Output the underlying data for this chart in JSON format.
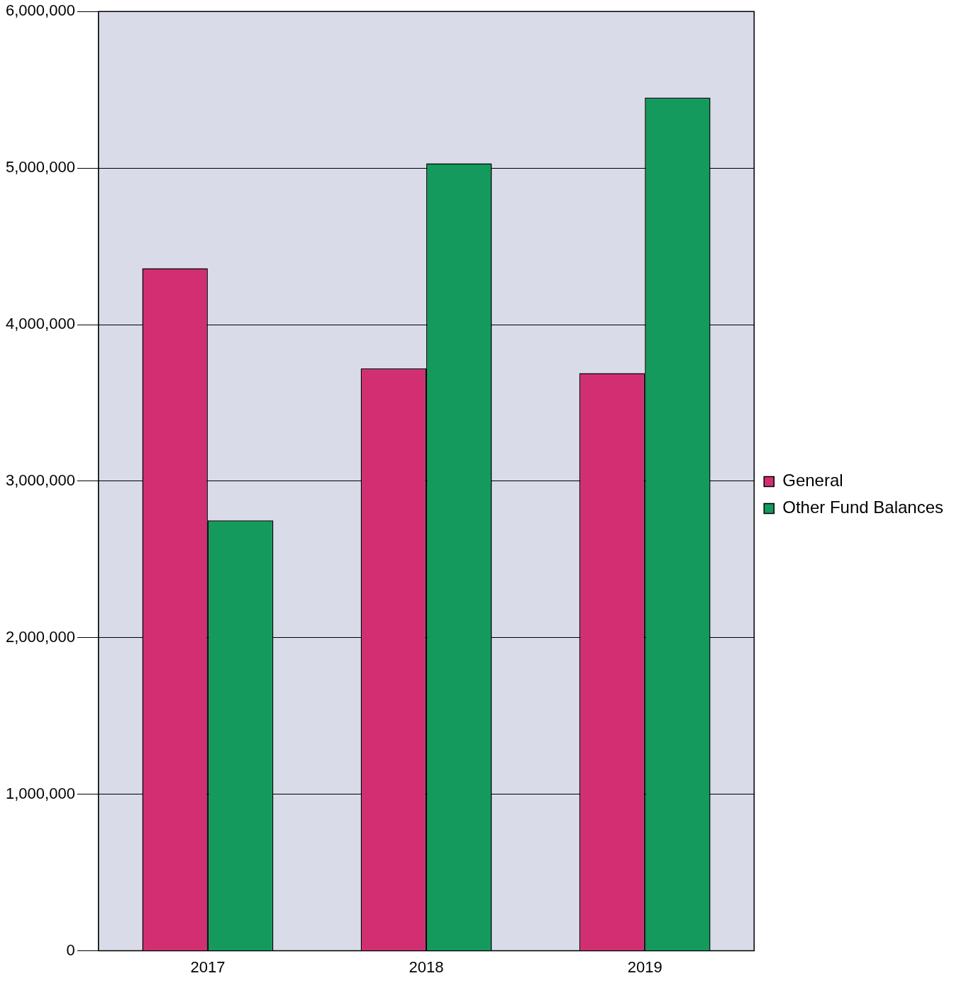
{
  "chart_data": {
    "type": "bar",
    "categories": [
      "2017",
      "2018",
      "2019"
    ],
    "series": [
      {
        "name": "General",
        "color": "#d12f72",
        "values": [
          4360000,
          3720000,
          3690000
        ]
      },
      {
        "name": "Other Fund Balances",
        "color": "#149a5c",
        "values": [
          2750000,
          5030000,
          5450000
        ]
      }
    ],
    "ylim": [
      0,
      6000000
    ],
    "yticks": [
      0,
      {
        "value": 1000000,
        "label": "1,000,000"
      },
      {
        "value": 2000000,
        "label": "2,000,000"
      },
      {
        "value": 3000000,
        "label": "3,000,000"
      },
      {
        "value": 4000000,
        "label": "4,000,000"
      },
      {
        "value": 5000000,
        "label": "5,000,000"
      },
      {
        "value": 6000000,
        "label": "6,000,000"
      }
    ],
    "grid": "y",
    "legend": "right"
  }
}
